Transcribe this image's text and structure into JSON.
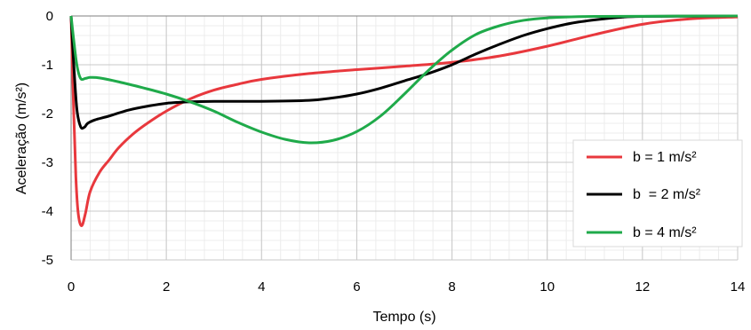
{
  "chart_data": {
    "type": "line",
    "xlabel": "Tempo (s)",
    "ylabel": "Aceleração (m/s²)",
    "xlim": [
      0,
      14
    ],
    "ylim": [
      -5,
      0
    ],
    "x_ticks": [
      "0",
      "2",
      "4",
      "6",
      "8",
      "10",
      "12",
      "14"
    ],
    "y_ticks": [
      "0",
      "-1",
      "-2",
      "-3",
      "-4",
      "-5"
    ],
    "grid": true,
    "legend_position": "bottom-right",
    "series": [
      {
        "name": "b = 1 m/s²",
        "color": "#e8383d",
        "points": [
          [
            0,
            0
          ],
          [
            0.05,
            -1.8
          ],
          [
            0.1,
            -3.3
          ],
          [
            0.15,
            -4.05
          ],
          [
            0.22,
            -4.3
          ],
          [
            0.3,
            -4.05
          ],
          [
            0.4,
            -3.6
          ],
          [
            0.6,
            -3.2
          ],
          [
            0.8,
            -2.95
          ],
          [
            1.0,
            -2.7
          ],
          [
            1.3,
            -2.42
          ],
          [
            1.6,
            -2.2
          ],
          [
            2.0,
            -1.95
          ],
          [
            2.5,
            -1.7
          ],
          [
            3.0,
            -1.52
          ],
          [
            3.5,
            -1.4
          ],
          [
            4.0,
            -1.3
          ],
          [
            5.0,
            -1.18
          ],
          [
            6.0,
            -1.1
          ],
          [
            7.0,
            -1.03
          ],
          [
            8.0,
            -0.95
          ],
          [
            9.0,
            -0.82
          ],
          [
            10.0,
            -0.62
          ],
          [
            11.0,
            -0.38
          ],
          [
            12.0,
            -0.17
          ],
          [
            13.0,
            -0.06
          ],
          [
            14.0,
            -0.02
          ]
        ]
      },
      {
        "name": "b  = 2 m/s²",
        "color": "#000000",
        "points": [
          [
            0,
            0
          ],
          [
            0.05,
            -0.9
          ],
          [
            0.12,
            -1.9
          ],
          [
            0.2,
            -2.27
          ],
          [
            0.28,
            -2.28
          ],
          [
            0.35,
            -2.2
          ],
          [
            0.5,
            -2.13
          ],
          [
            0.8,
            -2.05
          ],
          [
            1.2,
            -1.93
          ],
          [
            1.6,
            -1.85
          ],
          [
            2.0,
            -1.79
          ],
          [
            2.5,
            -1.76
          ],
          [
            3.0,
            -1.75
          ],
          [
            4.0,
            -1.75
          ],
          [
            5.0,
            -1.73
          ],
          [
            5.5,
            -1.68
          ],
          [
            6.0,
            -1.6
          ],
          [
            6.5,
            -1.48
          ],
          [
            7.0,
            -1.33
          ],
          [
            7.5,
            -1.18
          ],
          [
            8.0,
            -1.0
          ],
          [
            8.5,
            -0.78
          ],
          [
            9.0,
            -0.58
          ],
          [
            9.5,
            -0.4
          ],
          [
            10.0,
            -0.26
          ],
          [
            10.5,
            -0.15
          ],
          [
            11.0,
            -0.08
          ],
          [
            11.5,
            -0.03
          ],
          [
            12.0,
            -0.01
          ],
          [
            14.0,
            0
          ]
        ]
      },
      {
        "name": "b = 4 m/s²",
        "color": "#1faa4a",
        "points": [
          [
            0,
            0
          ],
          [
            0.05,
            -0.45
          ],
          [
            0.12,
            -1.0
          ],
          [
            0.2,
            -1.28
          ],
          [
            0.3,
            -1.28
          ],
          [
            0.4,
            -1.26
          ],
          [
            0.6,
            -1.27
          ],
          [
            1.0,
            -1.35
          ],
          [
            1.5,
            -1.47
          ],
          [
            2.0,
            -1.6
          ],
          [
            2.5,
            -1.76
          ],
          [
            3.0,
            -1.95
          ],
          [
            3.5,
            -2.18
          ],
          [
            4.0,
            -2.38
          ],
          [
            4.5,
            -2.53
          ],
          [
            5.0,
            -2.6
          ],
          [
            5.5,
            -2.55
          ],
          [
            6.0,
            -2.37
          ],
          [
            6.5,
            -2.05
          ],
          [
            7.0,
            -1.6
          ],
          [
            7.5,
            -1.12
          ],
          [
            8.0,
            -0.7
          ],
          [
            8.5,
            -0.38
          ],
          [
            9.0,
            -0.2
          ],
          [
            9.5,
            -0.09
          ],
          [
            10.0,
            -0.04
          ],
          [
            11.0,
            -0.01
          ],
          [
            14.0,
            0
          ]
        ]
      }
    ]
  }
}
